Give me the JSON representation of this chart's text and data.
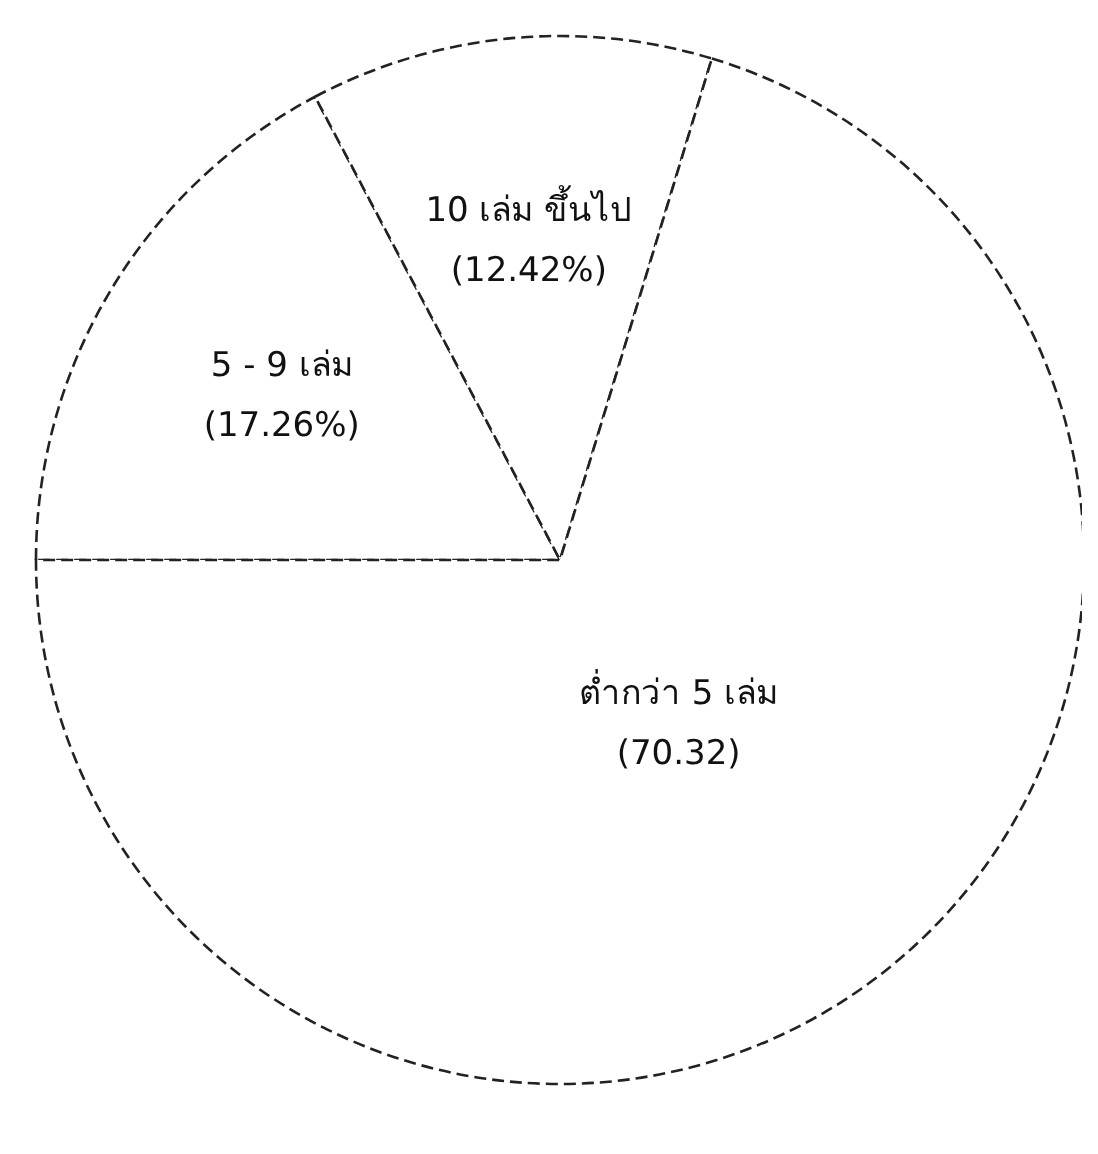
{
  "chart_data": {
    "type": "pie",
    "categories": [
      "5 - 9 เล่ม",
      "10 เล่ม ขึ้นไป",
      "ต่ำกว่า 5 เล่ม"
    ],
    "values": [
      17.26,
      12.42,
      70.32
    ],
    "value_labels": [
      "(17.26%)",
      "(12.42%)",
      "(70.32)"
    ],
    "colors": [
      "#ffffff",
      "#ffffff",
      "#ffffff"
    ]
  }
}
